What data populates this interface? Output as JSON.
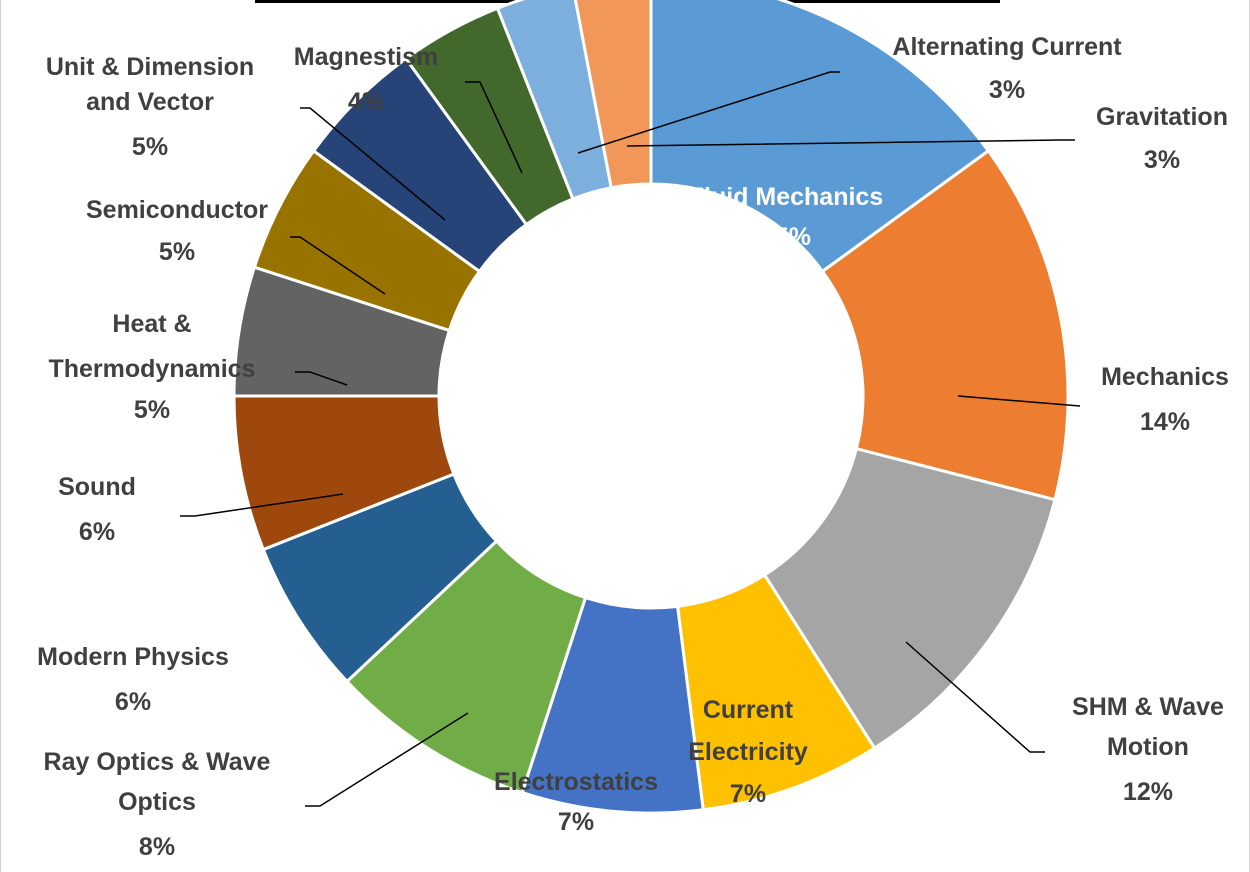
{
  "chart_data": {
    "type": "pie",
    "variant": "doughnut",
    "title": "",
    "series": [
      {
        "slices": [
          {
            "name": "Fluid Mechanics",
            "value": 15,
            "label": "15%",
            "color": "#5B9BD5"
          },
          {
            "name": "Mechanics",
            "value": 14,
            "label": "14%",
            "color": "#ED7D31"
          },
          {
            "name": "SHM & Wave Motion",
            "value": 12,
            "label": "12%",
            "color": "#A5A5A5"
          },
          {
            "name": "Current Electricity",
            "value": 7,
            "label": "7%",
            "color": "#FFC000"
          },
          {
            "name": "Electrostatics",
            "value": 7,
            "label": "7%",
            "color": "#4472C4"
          },
          {
            "name": "Ray Optics & Wave Optics",
            "value": 8,
            "label": "8%",
            "color": "#70AD47"
          },
          {
            "name": "Modern Physics",
            "value": 6,
            "label": "6%",
            "color": "#255E91"
          },
          {
            "name": "Sound",
            "value": 6,
            "label": "6%",
            "color": "#9E480E"
          },
          {
            "name": "Heat & Thermodynamics",
            "value": 5,
            "label": "5%",
            "color": "#636363"
          },
          {
            "name": "Semiconductor",
            "value": 5,
            "label": "5%",
            "color": "#997300"
          },
          {
            "name": "Unit & Dimension and Vector",
            "value": 5,
            "label": "5%",
            "color": "#264478"
          },
          {
            "name": "Magnestism",
            "value": 4,
            "label": "4%",
            "color": "#43682B"
          },
          {
            "name": "Alternating Current",
            "value": 3,
            "label": "3%",
            "color": "#7CAFDD"
          },
          {
            "name": "Gravitation",
            "value": 3,
            "label": "3%",
            "color": "#F1975A"
          }
        ]
      }
    ],
    "legend": "none",
    "data_labels": "category name and percentage",
    "label_color": "#404040"
  }
}
